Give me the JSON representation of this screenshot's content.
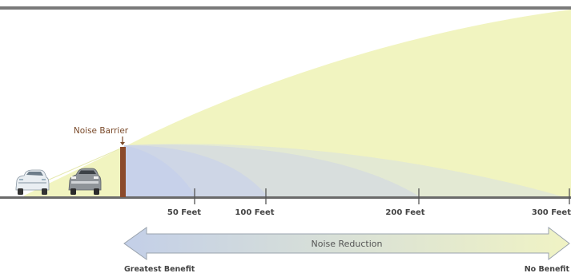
{
  "barrier": {
    "label": "Noise Barrier"
  },
  "distance_markers": [
    {
      "label": "50 Feet",
      "feet": 50
    },
    {
      "label": "100 Feet",
      "feet": 100
    },
    {
      "label": "200 Feet",
      "feet": 200
    },
    {
      "label": "300 Feet",
      "feet": 300
    }
  ],
  "arrow": {
    "label": "Noise Reduction",
    "left_label": "Greatest Benefit",
    "right_label": "No Benefit"
  },
  "colors": {
    "noise_field": "#f1f4c0",
    "shadow_zone": "#c9d3ea",
    "barrier": "#8b4a2b",
    "ground": "#6a6a6a",
    "top_rule": "#7a7a7a",
    "arrow_left": "#c3cfe8",
    "arrow_right": "#f0f3c4"
  },
  "vehicles": [
    {
      "name": "white-sedan"
    },
    {
      "name": "gray-suv"
    }
  ]
}
